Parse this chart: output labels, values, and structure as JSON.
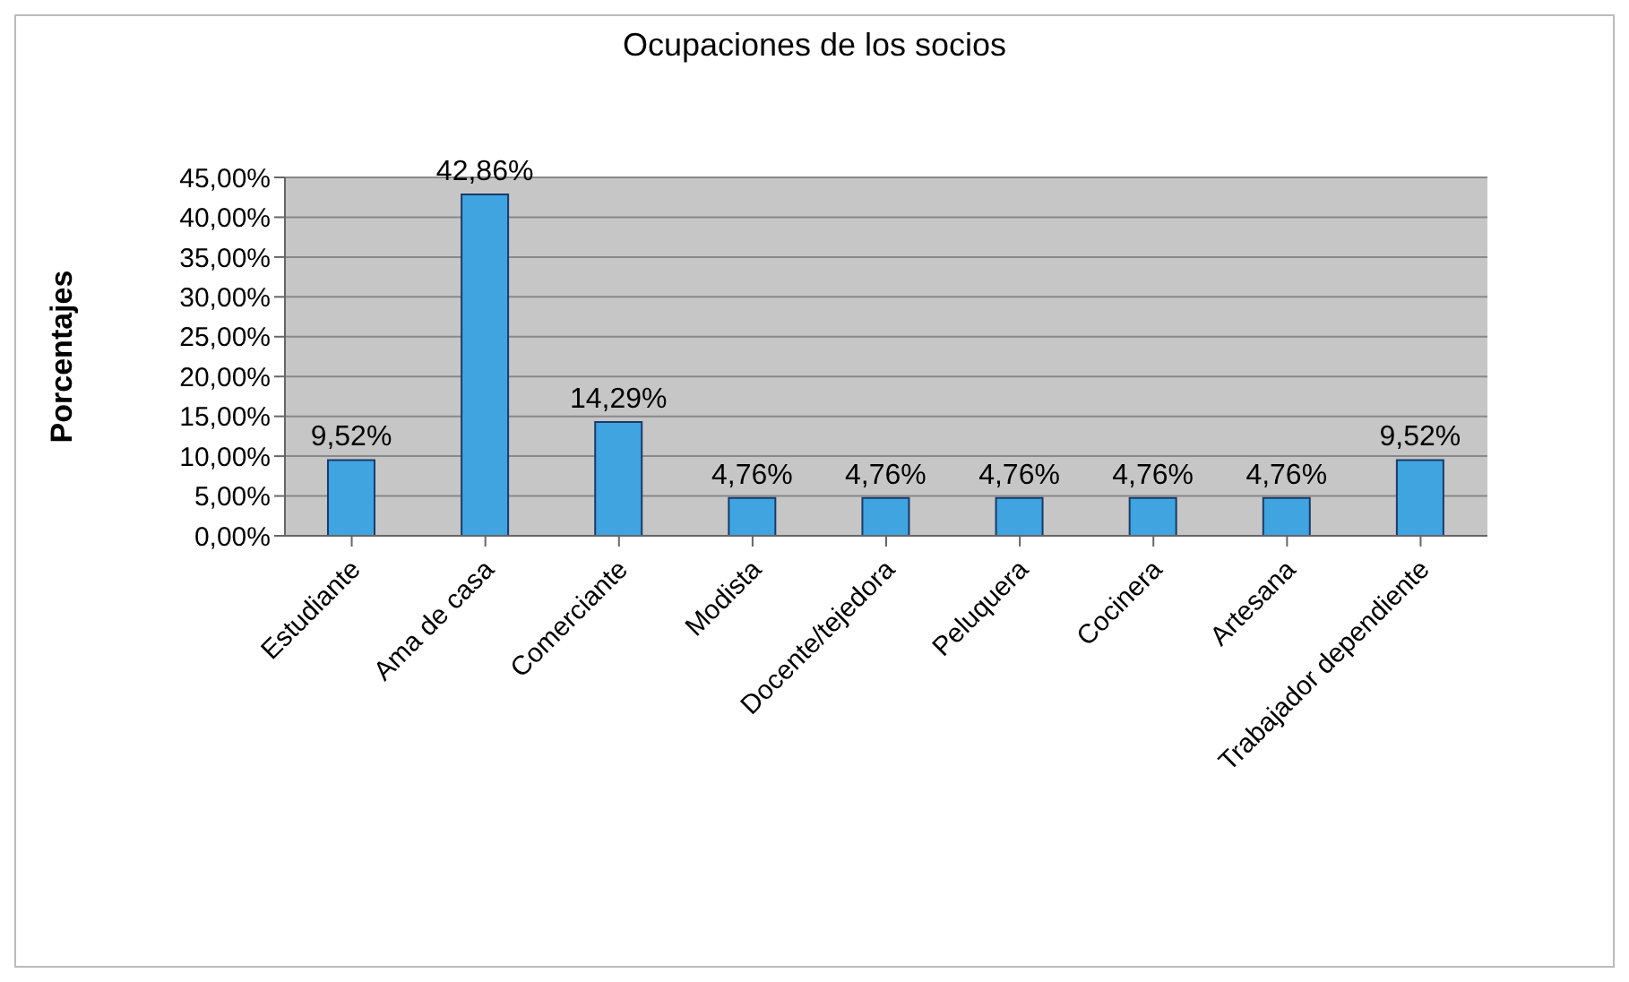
{
  "chart_data": {
    "type": "bar",
    "title": "Ocupaciones de los socios",
    "ylabel": "Porcentajes",
    "categories": [
      "Estudiante",
      "Ama de casa",
      "Comerciante",
      "Modista",
      "Docente/tejedora",
      "Peluquera",
      "Cocinera",
      "Artesana",
      "Trabajador dependiente"
    ],
    "values": [
      9.52,
      42.86,
      14.29,
      4.76,
      4.76,
      4.76,
      4.76,
      4.76,
      9.52
    ],
    "value_labels": [
      "9,52%",
      "42,86%",
      "14,29%",
      "4,76%",
      "4,76%",
      "4,76%",
      "4,76%",
      "4,76%",
      "9,52%"
    ],
    "color": "#3fa4e0",
    "ylim": [
      0,
      45
    ],
    "yticks": [
      {
        "value": 0,
        "label": "0,00%"
      },
      {
        "value": 5,
        "label": "5,00%"
      },
      {
        "value": 10,
        "label": "10,00%"
      },
      {
        "value": 15,
        "label": "15,00%"
      },
      {
        "value": 20,
        "label": "20,00%"
      },
      {
        "value": 25,
        "label": "25,00%"
      },
      {
        "value": 30,
        "label": "30,00%"
      },
      {
        "value": 35,
        "label": "35,00%"
      },
      {
        "value": 40,
        "label": "40,00%"
      },
      {
        "value": 45,
        "label": "45,00%"
      }
    ],
    "grid": "y",
    "legend": false
  }
}
